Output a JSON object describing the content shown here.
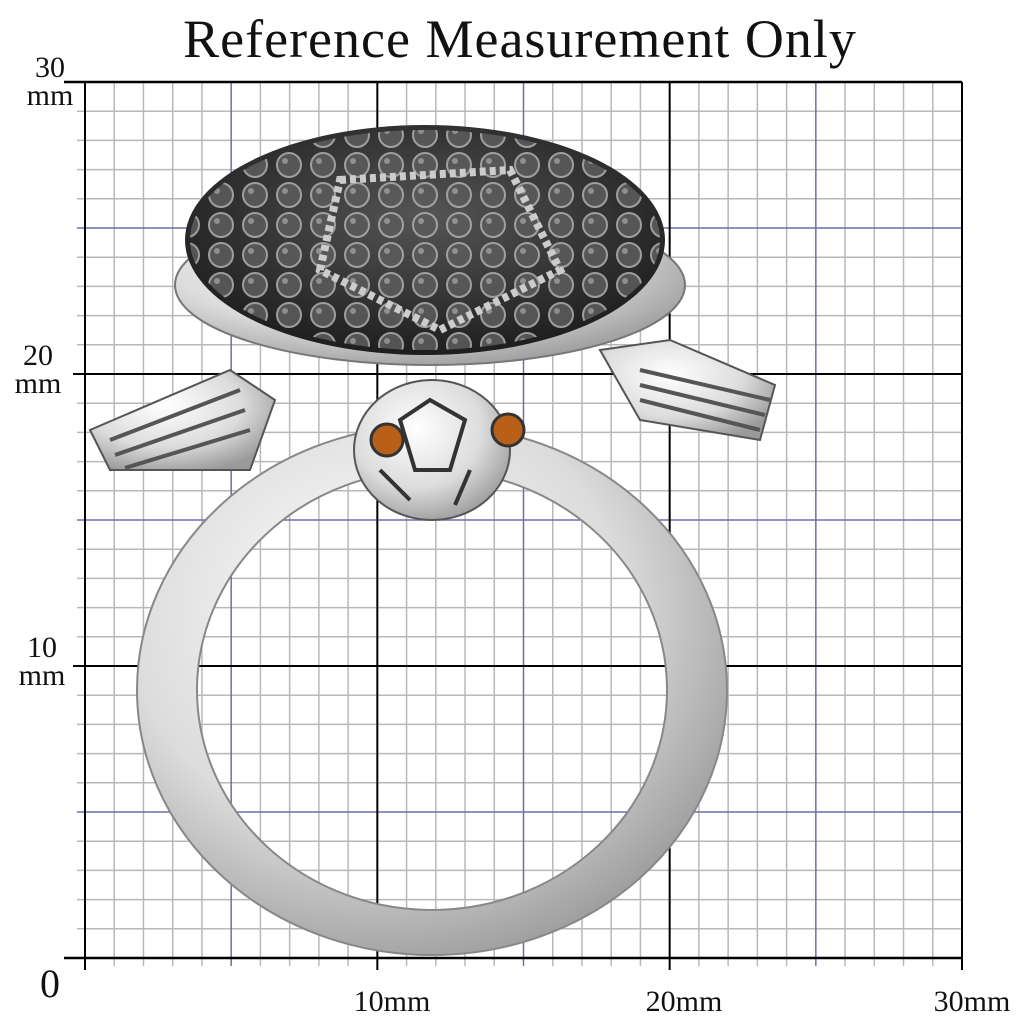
{
  "title": "Reference Measurement Only",
  "units": "mm",
  "grid": {
    "range_mm": [
      0,
      30
    ],
    "minor_step_mm": 1,
    "mid_step_mm": 5,
    "major_step_mm": 10,
    "colors": {
      "minor": "#b8b8b8",
      "mid": "#6e6ea8",
      "major": "#000000"
    }
  },
  "y_labels": [
    {
      "value": "30",
      "unit": "mm"
    },
    {
      "value": "20",
      "unit": "mm"
    },
    {
      "value": "10",
      "unit": "mm"
    },
    {
      "value": "0",
      "unit": ""
    }
  ],
  "x_labels": [
    "10mm",
    "20mm",
    "30mm"
  ],
  "subject": {
    "item": "turtle ring",
    "metal_color": "#d8d8d8",
    "stone_color": "#3a3a3a",
    "eye_color": "#b8601a"
  }
}
